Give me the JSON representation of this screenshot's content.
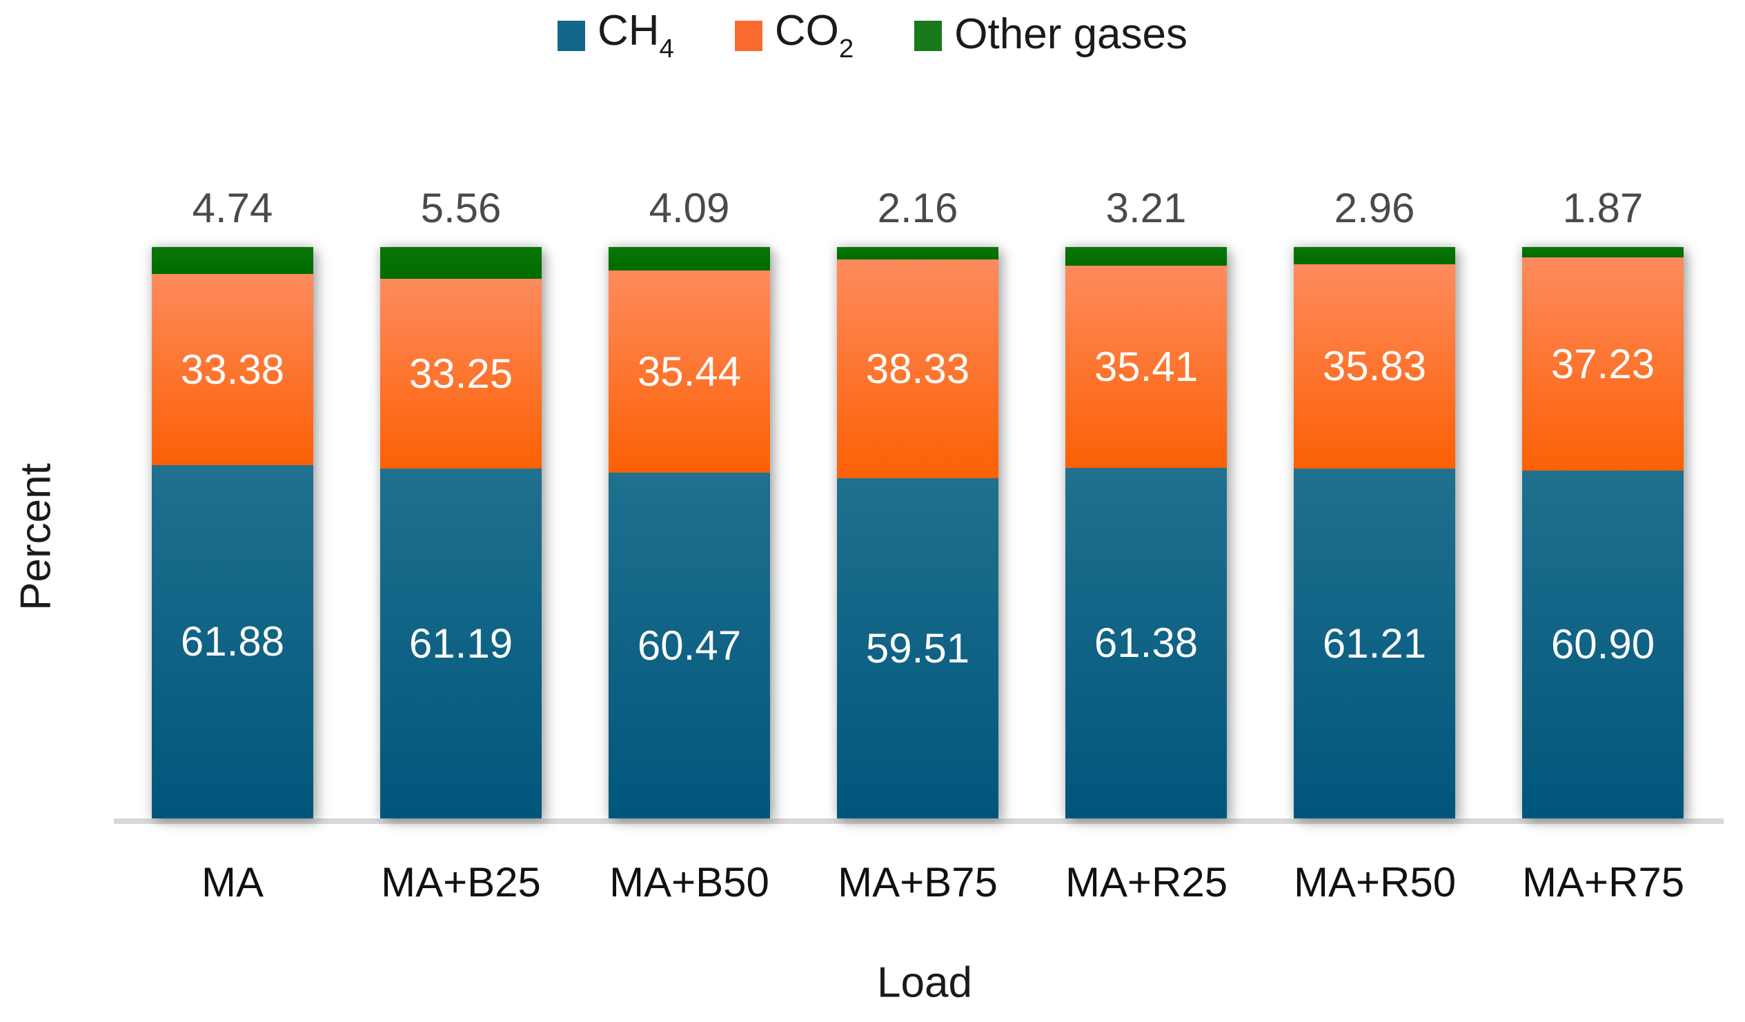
{
  "chart_data": {
    "type": "bar",
    "stacked": true,
    "title": "",
    "xlabel": "Load",
    "ylabel": "Percent",
    "ylim": [
      0,
      100
    ],
    "grid": false,
    "legend_position": "top-center",
    "categories": [
      "MA",
      "MA+B25",
      "MA+B50",
      "MA+B75",
      "MA+R25",
      "MA+R50",
      "MA+R75"
    ],
    "series": [
      {
        "name": "CH4",
        "label_base": "CH",
        "label_sub": "4",
        "values": [
          61.88,
          61.19,
          60.47,
          59.51,
          61.38,
          61.21,
          60.9
        ]
      },
      {
        "name": "CO2",
        "label_base": "CO",
        "label_sub": "2",
        "values": [
          33.38,
          33.25,
          35.44,
          38.33,
          35.41,
          35.83,
          37.23
        ]
      },
      {
        "name": "Other gases",
        "label_base": "Other gases",
        "label_sub": "",
        "values": [
          4.74,
          5.56,
          4.09,
          2.16,
          3.21,
          2.96,
          1.87
        ]
      }
    ],
    "value_label_decimals": 2
  },
  "colors": {
    "ch4_top": "#20708F",
    "ch4_bottom": "#00567B",
    "co2_top": "#FE8B5D",
    "co2_bottom": "#FC6005",
    "other_top": "#0A7508",
    "other_bottom": "#006B00",
    "legend_ch4": "#136687",
    "legend_co2": "#F86A30",
    "legend_other": "#177A1D",
    "outside_label": "#4A4A4A",
    "inside_label": "#FDFDFD",
    "axis_line": "#D8D8D8"
  }
}
